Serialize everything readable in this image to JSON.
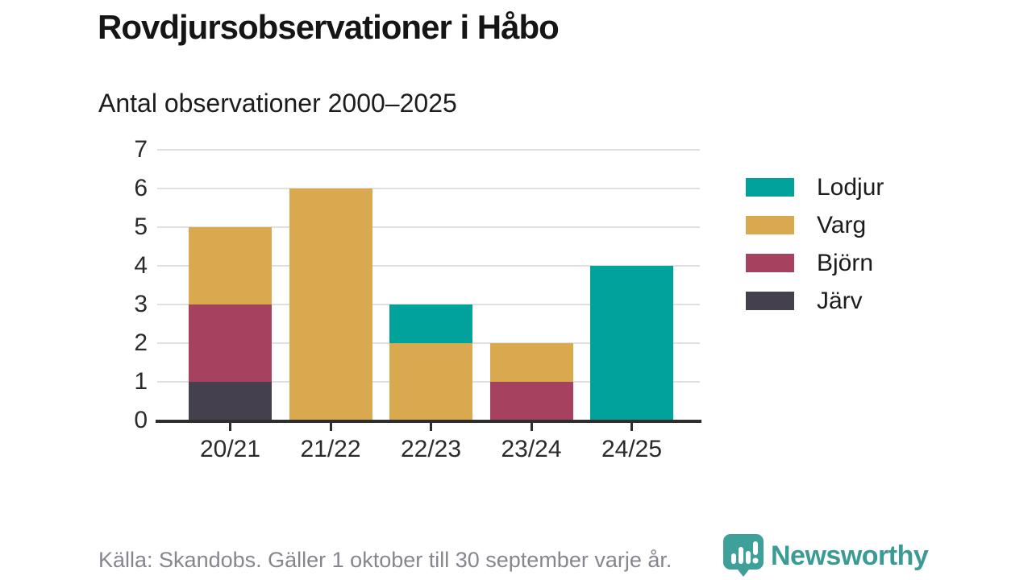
{
  "title": "Rovdjursobservationer i Håbo",
  "subtitle": "Antal observationer 2000–2025",
  "source_note": "Källa: Skandobs. Gäller 1 oktober till 30 september varje år.",
  "branding": {
    "name": "Newsworthy",
    "color": "#3a9b94",
    "icon": "bar-chart-speech-bubble"
  },
  "colors": {
    "background": "#ffffff",
    "title_text": "#151515",
    "axis": "#2e2e2e",
    "gridline": "#e0e0e0",
    "footer_text": "#86868e"
  },
  "chart_data": {
    "type": "bar",
    "stacked": true,
    "title": "Rovdjursobservationer i Håbo",
    "subtitle": "Antal observationer 2000–2025",
    "categories": [
      "20/21",
      "21/22",
      "22/23",
      "23/24",
      "24/25"
    ],
    "series": [
      {
        "name": "Lodjur",
        "color": "#00A29B",
        "values": [
          0,
          0,
          1,
          0,
          4
        ]
      },
      {
        "name": "Varg",
        "color": "#D8A94E",
        "values": [
          2,
          6,
          2,
          1,
          0
        ]
      },
      {
        "name": "Björn",
        "color": "#A6425F",
        "values": [
          2,
          0,
          0,
          1,
          0
        ]
      },
      {
        "name": "Järv",
        "color": "#44404E",
        "values": [
          1,
          0,
          0,
          0,
          0
        ]
      }
    ],
    "stack_order_bottom_to_top": [
      "Järv",
      "Björn",
      "Varg",
      "Lodjur"
    ],
    "totals": [
      5,
      6,
      3,
      2,
      4
    ],
    "xlabel": "",
    "ylabel": "",
    "ylim": [
      0,
      7
    ],
    "yticks": [
      0,
      1,
      2,
      3,
      4,
      5,
      6,
      7
    ],
    "grid": true,
    "legend_position": "right"
  }
}
